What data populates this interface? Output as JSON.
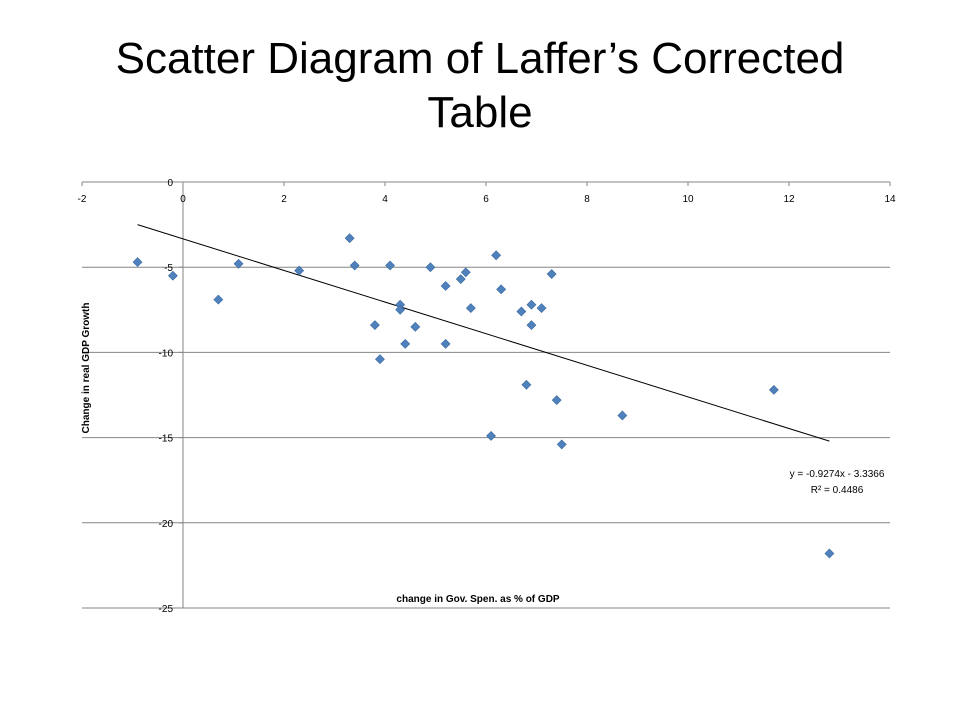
{
  "slide": {
    "title_line1": "Scatter Diagram of Laffer’s Corrected",
    "title_line2": "Table"
  },
  "chart_data": {
    "type": "scatter",
    "title": "Scatter Diagram of Laffer’s Corrected Table",
    "xlabel": "change in Gov. Spen. as % of GDP",
    "ylabel": "Change in real GDP Growth",
    "xlim": [
      -2,
      14
    ],
    "ylim": [
      -25,
      0
    ],
    "x_ticks": [
      -2,
      0,
      2,
      4,
      6,
      8,
      10,
      12,
      14
    ],
    "y_ticks": [
      0,
      -5,
      -10,
      -15,
      -20,
      -25
    ],
    "grid": "horizontal",
    "marker_color": "#4F81BD",
    "marker": "diamond",
    "points": [
      {
        "x": -0.9,
        "y": -4.7
      },
      {
        "x": -0.2,
        "y": -5.5
      },
      {
        "x": 0.7,
        "y": -6.9
      },
      {
        "x": 1.1,
        "y": -4.8
      },
      {
        "x": 2.3,
        "y": -5.2
      },
      {
        "x": 3.3,
        "y": -3.3
      },
      {
        "x": 3.4,
        "y": -4.9
      },
      {
        "x": 3.8,
        "y": -8.4
      },
      {
        "x": 3.9,
        "y": -10.4
      },
      {
        "x": 4.1,
        "y": -4.9
      },
      {
        "x": 4.3,
        "y": -7.2
      },
      {
        "x": 4.3,
        "y": -7.5
      },
      {
        "x": 4.4,
        "y": -9.5
      },
      {
        "x": 4.6,
        "y": -8.5
      },
      {
        "x": 4.9,
        "y": -5.0
      },
      {
        "x": 5.2,
        "y": -6.1
      },
      {
        "x": 5.2,
        "y": -9.5
      },
      {
        "x": 5.5,
        "y": -5.7
      },
      {
        "x": 5.6,
        "y": -5.3
      },
      {
        "x": 5.7,
        "y": -7.4
      },
      {
        "x": 6.1,
        "y": -14.9
      },
      {
        "x": 6.2,
        "y": -4.3
      },
      {
        "x": 6.3,
        "y": -6.3
      },
      {
        "x": 6.7,
        "y": -7.6
      },
      {
        "x": 6.8,
        "y": -11.9
      },
      {
        "x": 6.9,
        "y": -7.2
      },
      {
        "x": 6.9,
        "y": -8.4
      },
      {
        "x": 7.1,
        "y": -7.4
      },
      {
        "x": 7.3,
        "y": -5.4
      },
      {
        "x": 7.4,
        "y": -12.8
      },
      {
        "x": 7.5,
        "y": -15.4
      },
      {
        "x": 8.7,
        "y": -13.7
      },
      {
        "x": 11.7,
        "y": -12.2
      },
      {
        "x": 12.8,
        "y": -21.8
      }
    ],
    "trendline": {
      "slope": -0.9274,
      "intercept": -3.3366,
      "x_range": [
        -0.9,
        12.8
      ],
      "equation_label": "y = -0.9274x - 3.3366",
      "r2_label": "R² = 0.4486"
    }
  }
}
